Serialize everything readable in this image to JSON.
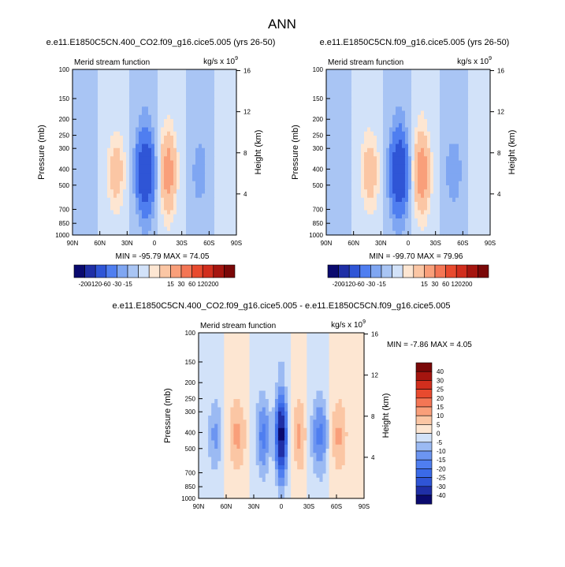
{
  "page_title": "ANN",
  "chart_data": [
    {
      "type": "contour",
      "title": "e.e11.E1850C5CN.400_CO2.f09_g16.cice5.005 (yrs 26-50)",
      "left_string": "Merid stream function",
      "right_string_base": "kg/s x 10",
      "right_string_exp": "9",
      "ylabel": "Pressure (mb)",
      "ylabel_right": "Height (km)",
      "xticks": [
        "90N",
        "60N",
        "30N",
        "0",
        "30S",
        "60S",
        "90S"
      ],
      "yticks": [
        100,
        150,
        200,
        250,
        300,
        400,
        500,
        700,
        850,
        1000
      ],
      "ylim": [
        100,
        1000
      ],
      "height_ticks": [
        4,
        8,
        12,
        16
      ],
      "stats_text": "MIN = -95.79  MAX = 74.05",
      "min": -95.79,
      "max": 74.05,
      "bands": [
        {
          "lat": -80,
          "amp": 10,
          "width": 10
        },
        {
          "lat": -50,
          "amp": -22,
          "width": 10
        },
        {
          "lat": -15,
          "amp": 74,
          "width": 9
        },
        {
          "lat": 10,
          "amp": -96,
          "width": 10
        },
        {
          "lat": 42,
          "amp": 40,
          "width": 10
        },
        {
          "lat": 78,
          "amp": -10,
          "width": 8
        }
      ]
    },
    {
      "type": "contour",
      "title": "e.e11.E1850C5CN.f09_g16.cice5.005 (yrs 26-50)",
      "left_string": "Merid stream function",
      "right_string_base": "kg/s x 10",
      "right_string_exp": "9",
      "ylabel": "Pressure (mb)",
      "ylabel_right": "Height (km)",
      "xticks": [
        "90N",
        "60N",
        "30N",
        "0",
        "30S",
        "60S",
        "90S"
      ],
      "yticks": [
        100,
        150,
        200,
        250,
        300,
        400,
        500,
        700,
        850,
        1000
      ],
      "ylim": [
        100,
        1000
      ],
      "height_ticks": [
        4,
        8,
        12,
        16
      ],
      "stats_text": "MIN = -99.70  MAX = 79.96",
      "min": -99.7,
      "max": 79.96,
      "bands": [
        {
          "lat": -80,
          "amp": 10,
          "width": 10
        },
        {
          "lat": -50,
          "amp": -24,
          "width": 10
        },
        {
          "lat": -15,
          "amp": 80,
          "width": 9
        },
        {
          "lat": 10,
          "amp": -100,
          "width": 10
        },
        {
          "lat": 42,
          "amp": 42,
          "width": 10
        },
        {
          "lat": 78,
          "amp": -10,
          "width": 8
        }
      ]
    },
    {
      "type": "contour",
      "title": "e.e11.E1850C5CN.400_CO2.f09_g16.cice5.005 - e.e11.E1850C5CN.f09_g16.cice5.005",
      "left_string": "Merid stream function",
      "right_string_base": "kg/s x 10",
      "right_string_exp": "9",
      "ylabel": "Pressure (mb)",
      "ylabel_right": "Height (km)",
      "xticks": [
        "90N",
        "60N",
        "30N",
        "0",
        "30S",
        "60S",
        "90S"
      ],
      "yticks": [
        100,
        150,
        200,
        250,
        300,
        400,
        500,
        700,
        850,
        1000
      ],
      "ylim": [
        100,
        1000
      ],
      "height_ticks": [
        4,
        8,
        12,
        16
      ],
      "stats_text": "MIN = -7.86  MAX =  4.05",
      "min": -7.86,
      "max": 4.05,
      "bands": [
        {
          "lat": -62,
          "amp": 2,
          "width": 10
        },
        {
          "lat": -42,
          "amp": -3,
          "width": 10
        },
        {
          "lat": -20,
          "amp": 2,
          "width": 8
        },
        {
          "lat": 0,
          "amp": -8,
          "width": 6
        },
        {
          "lat": 20,
          "amp": -3,
          "width": 8
        },
        {
          "lat": 48,
          "amp": 2,
          "width": 10
        },
        {
          "lat": 72,
          "amp": -2,
          "width": 8
        }
      ]
    }
  ],
  "colorbars": {
    "full": {
      "labels": [
        "-200",
        "-120",
        "-60",
        "-30",
        "-15",
        "15",
        "30",
        "60",
        "120",
        "200"
      ],
      "levels": [
        -200,
        -120,
        -60,
        -30,
        -15,
        0,
        15,
        30,
        60,
        120,
        200
      ],
      "colors": [
        "#0a0a6e",
        "#1f2fa6",
        "#2f55d6",
        "#4f7ef0",
        "#7fa6f2",
        "#a9c5f4",
        "#d2e2f9",
        "#fde6d2",
        "#fbc6a4",
        "#f99f7a",
        "#f47655",
        "#e84a2e",
        "#d12e1d",
        "#a5150f",
        "#7a0808"
      ]
    },
    "diff": {
      "labels": [
        "40",
        "30",
        "25",
        "20",
        "15",
        "10",
        "5",
        "0",
        "-5",
        "-10",
        "-15",
        "-20",
        "-25",
        "-30",
        "-40"
      ],
      "levels": [
        -4,
        -3,
        -2.5,
        -2,
        -1.5,
        -1,
        -0.5,
        0,
        0.5,
        1,
        1.5,
        2,
        2.5,
        3,
        4
      ],
      "colors": [
        "#0a0a6e",
        "#1f2fa6",
        "#2f55d6",
        "#3a6ae8",
        "#4f7ef0",
        "#6c95f1",
        "#9bbaf3",
        "#d2e2f9",
        "#fde6d2",
        "#fbc6a4",
        "#f99f7a",
        "#f47655",
        "#e84a2e",
        "#d12e1d",
        "#a5150f",
        "#7a0808"
      ]
    }
  }
}
